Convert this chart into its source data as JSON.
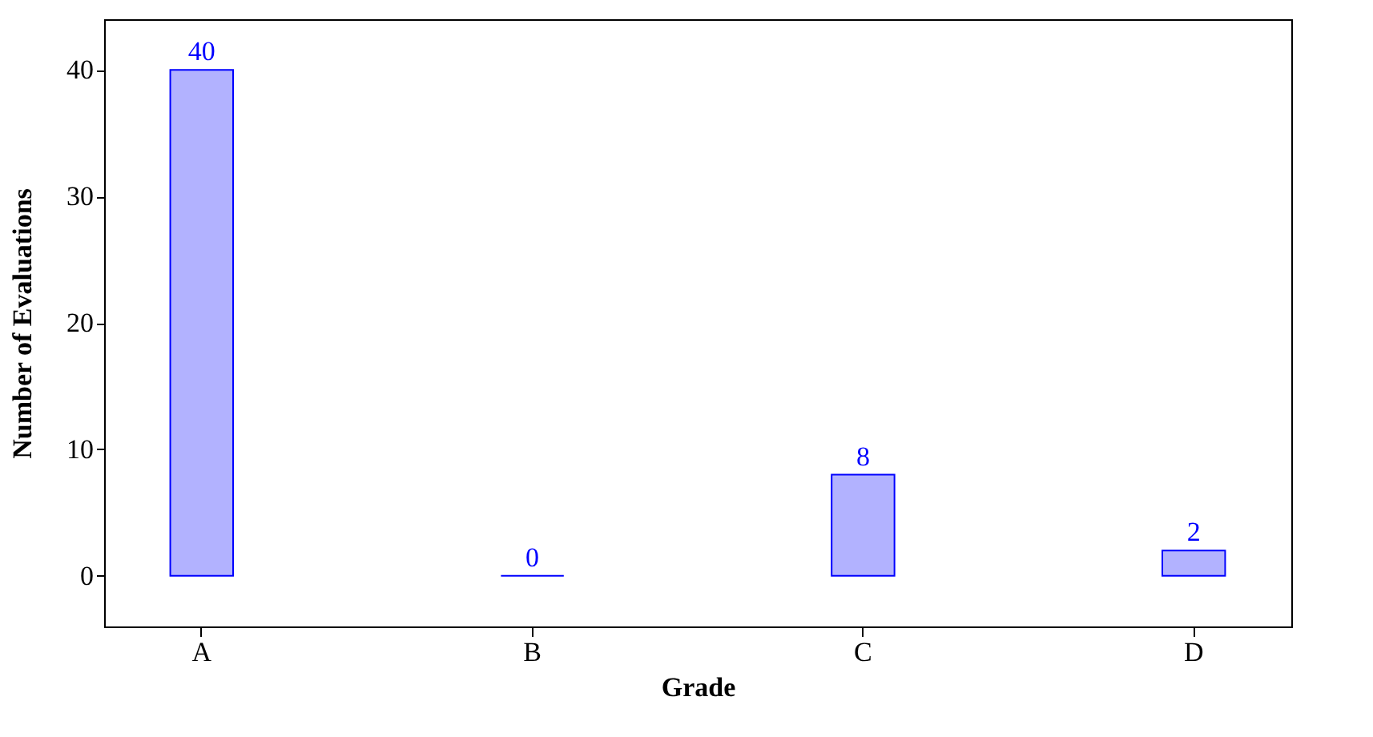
{
  "chart_data": {
    "type": "bar",
    "xlabel": "Grade",
    "ylabel": "Number of Evaluations",
    "categories": [
      "A",
      "B",
      "C",
      "D"
    ],
    "series": [
      {
        "color": "#0000ff",
        "values": [
          40,
          0,
          8,
          2
        ]
      }
    ],
    "ylim": [
      -4,
      44
    ],
    "yticks": [
      0,
      10,
      20,
      30,
      40
    ],
    "data_labels": true
  }
}
